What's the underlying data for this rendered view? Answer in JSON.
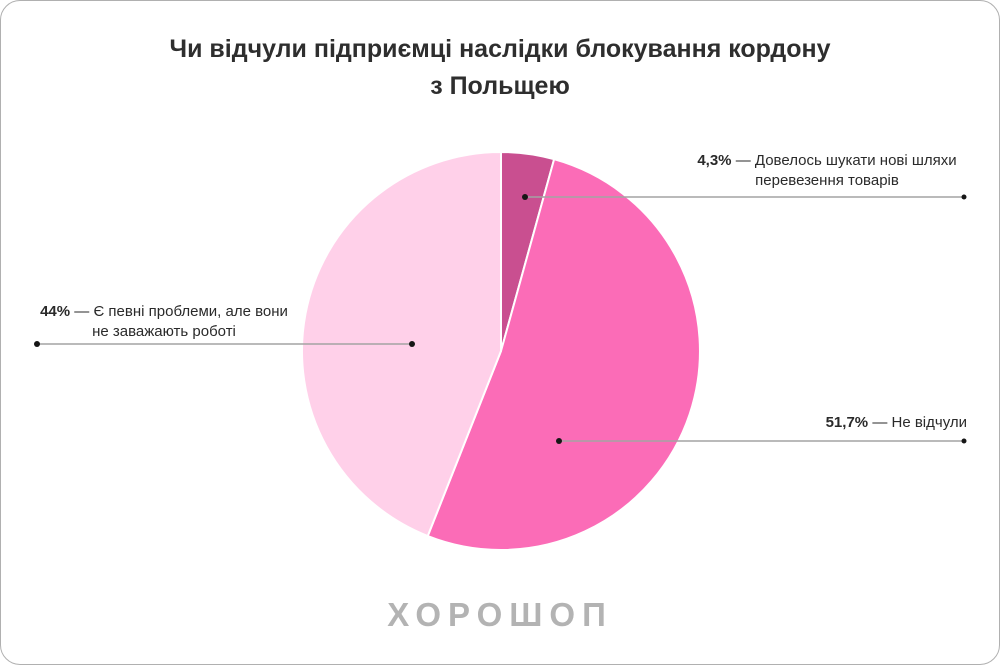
{
  "card": {
    "title": "Чи відчули підприємці наслідки блокування кордону з Польщею",
    "logo": "ХОРОШОП"
  },
  "chart_data": {
    "type": "pie",
    "title": "Чи відчули підприємці наслідки блокування кордону з Польщею",
    "unit": "%",
    "start_angle_deg": 0,
    "direction": "clockwise",
    "separator": "—",
    "slices": [
      {
        "label": "Довелось шукати нові шляхи перевезення товарів",
        "value": 4.3,
        "value_label": "4,3%",
        "color": "#c94f90"
      },
      {
        "label": "Не відчули",
        "value": 51.7,
        "value_label": "51,7%",
        "color": "#fb6cb7"
      },
      {
        "label": "Є певні проблеми, але вони не заважають роботі",
        "value": 44,
        "value_label": "44%",
        "color": "#ffd0e9"
      }
    ],
    "style": {
      "line_color": "#a3a3a3",
      "dot_color": "#161616",
      "text_color": "#2a2a2a",
      "title_color": "#2e2e2e",
      "logo_color": "#b3b3b3"
    }
  }
}
